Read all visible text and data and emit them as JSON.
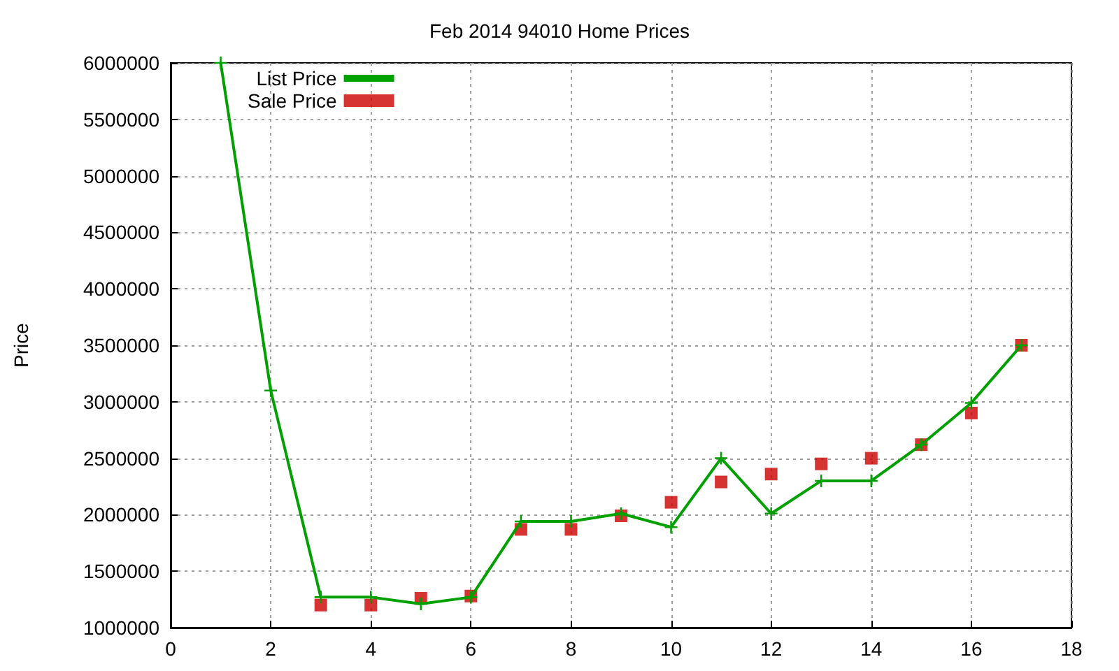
{
  "chart_data": {
    "type": "line",
    "title": "Feb 2014 94010 Home Prices",
    "ylabel": "Price",
    "x": [
      1,
      2,
      3,
      4,
      5,
      6,
      7,
      8,
      9,
      10,
      11,
      12,
      13,
      14,
      15,
      16,
      17
    ],
    "series": [
      {
        "name": "List Price",
        "marker": "cross",
        "color": "#00a000",
        "values": [
          6000000,
          3100000,
          1270000,
          1270000,
          1210000,
          1270000,
          1940000,
          1940000,
          2010000,
          1890000,
          2500000,
          2010000,
          2300000,
          2300000,
          2620000,
          2990000,
          3500000
        ]
      },
      {
        "name": "Sale Price",
        "type": "scatter",
        "marker": "square",
        "color": "#cc0000",
        "values": [
          null,
          null,
          1200000,
          1200000,
          1260000,
          1280000,
          1870000,
          1870000,
          1990000,
          2110000,
          2290000,
          2360000,
          2450000,
          2500000,
          2620000,
          2900000,
          3500000
        ]
      }
    ],
    "xlim": [
      0,
      18
    ],
    "xticks": [
      0,
      2,
      4,
      6,
      8,
      10,
      12,
      14,
      16,
      18
    ],
    "ylim": [
      1000000,
      6000000
    ],
    "yticks": [
      1000000,
      1500000,
      2000000,
      2500000,
      3000000,
      3500000,
      4000000,
      4500000,
      5000000,
      5500000,
      6000000
    ],
    "grid": true,
    "legend": "top left"
  }
}
